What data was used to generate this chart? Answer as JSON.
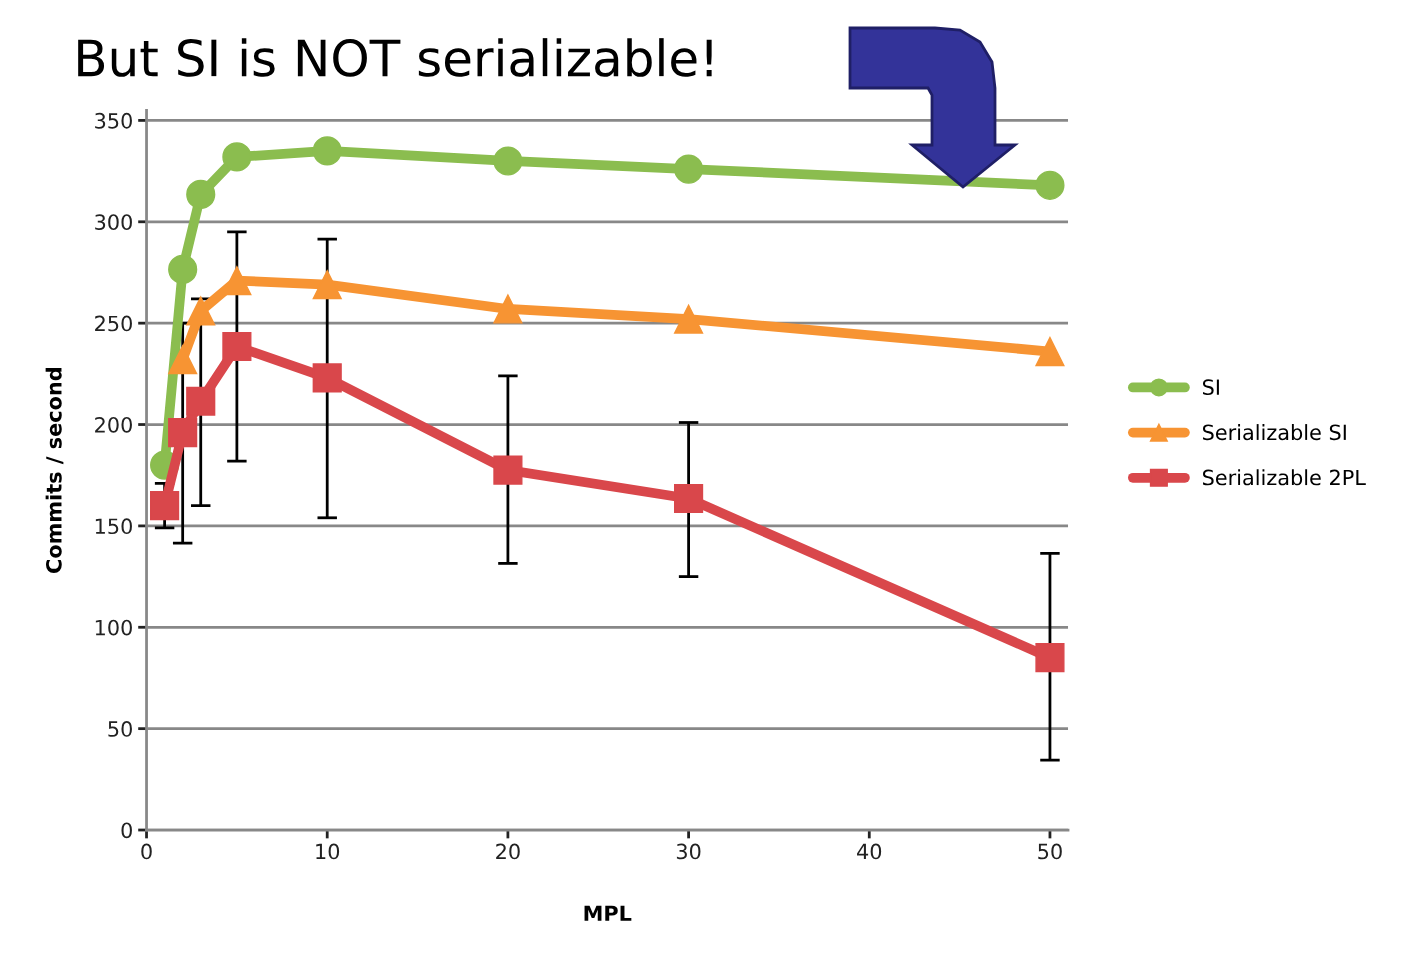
{
  "chart_data": {
    "type": "line",
    "title": "But SI is NOT serializable!",
    "xlabel": "MPL",
    "ylabel": "Commits / second",
    "xlim": [
      0,
      51
    ],
    "ylim": [
      0,
      355
    ],
    "xticks": [
      0,
      10,
      20,
      30,
      40,
      50
    ],
    "yticks": [
      0,
      50,
      100,
      150,
      200,
      250,
      300,
      350
    ],
    "grid": "y",
    "legend": "right",
    "series": [
      {
        "name": "SI",
        "color": "#8bbd4f",
        "marker": "circle",
        "x": [
          1,
          2,
          3,
          5,
          10,
          20,
          30,
          50
        ],
        "values": [
          180,
          276.5,
          313.5,
          332,
          335,
          330,
          326,
          318
        ]
      },
      {
        "name": "Serializable SI",
        "color": "#f79433",
        "marker": "triangle",
        "x": [
          2,
          3,
          5,
          10,
          20,
          30,
          50
        ],
        "values": [
          232,
          256,
          271,
          269,
          257,
          252,
          236
        ]
      },
      {
        "name": "Serializable 2PL",
        "color": "#d9474b",
        "marker": "square",
        "x": [
          1,
          2,
          3,
          5,
          10,
          20,
          30,
          50
        ],
        "values": [
          160,
          196,
          211.5,
          238.5,
          223,
          177.5,
          163.5,
          85
        ],
        "errors": [
          [
            149,
            171
          ],
          [
            141.5,
            250
          ],
          [
            160,
            262
          ],
          [
            182,
            295
          ],
          [
            154,
            291.5
          ],
          [
            131.5,
            224
          ],
          [
            125,
            201
          ],
          [
            34.5,
            136.5
          ]
        ]
      }
    ]
  }
}
